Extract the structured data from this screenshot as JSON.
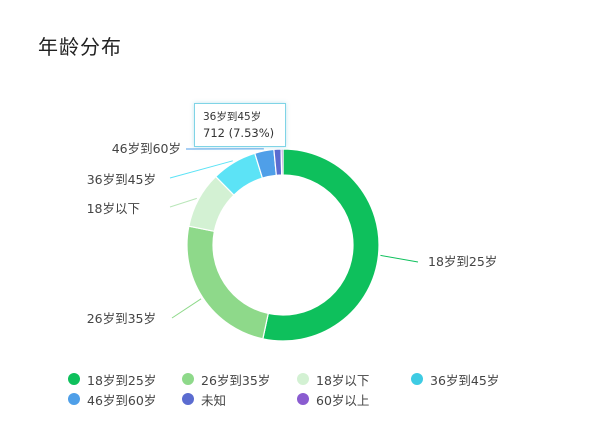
{
  "title": "年龄分布",
  "tooltip": {
    "name": "36岁到45岁",
    "value": "712 (7.53%)"
  },
  "chart_data": {
    "type": "pie",
    "style": "donut",
    "categories": [
      "18岁到25岁",
      "26岁到35岁",
      "18岁以下",
      "36岁到45岁",
      "46岁到60岁",
      "未知",
      "60岁以上"
    ],
    "values": [
      52.8,
      24.5,
      9.4,
      7.53,
      3.2,
      1.2,
      0.3
    ],
    "colors": [
      "#0ec05c",
      "#8ed98a",
      "#d3f1d3",
      "#5ce3f6",
      "#4f9fe8",
      "#5b6cd0",
      "#8a5cd0"
    ],
    "callout_labels": [
      "18岁到25岁",
      "26岁到35岁",
      "18岁以下",
      "36岁到45岁",
      "46岁到60岁"
    ],
    "legend_position": "bottom"
  },
  "legend": {
    "items": [
      {
        "label": "18岁到25岁",
        "color": "#0ec05c"
      },
      {
        "label": "26岁到35岁",
        "color": "#8ed98a"
      },
      {
        "label": "18岁以下",
        "color": "#d3f1d3"
      },
      {
        "label": "36岁到45岁",
        "color": "#3ecbe3"
      },
      {
        "label": "46岁到60岁",
        "color": "#4f9fe8"
      },
      {
        "label": "未知",
        "color": "#5b6cd0"
      },
      {
        "label": "60岁以上",
        "color": "#8a5cd0"
      }
    ]
  }
}
